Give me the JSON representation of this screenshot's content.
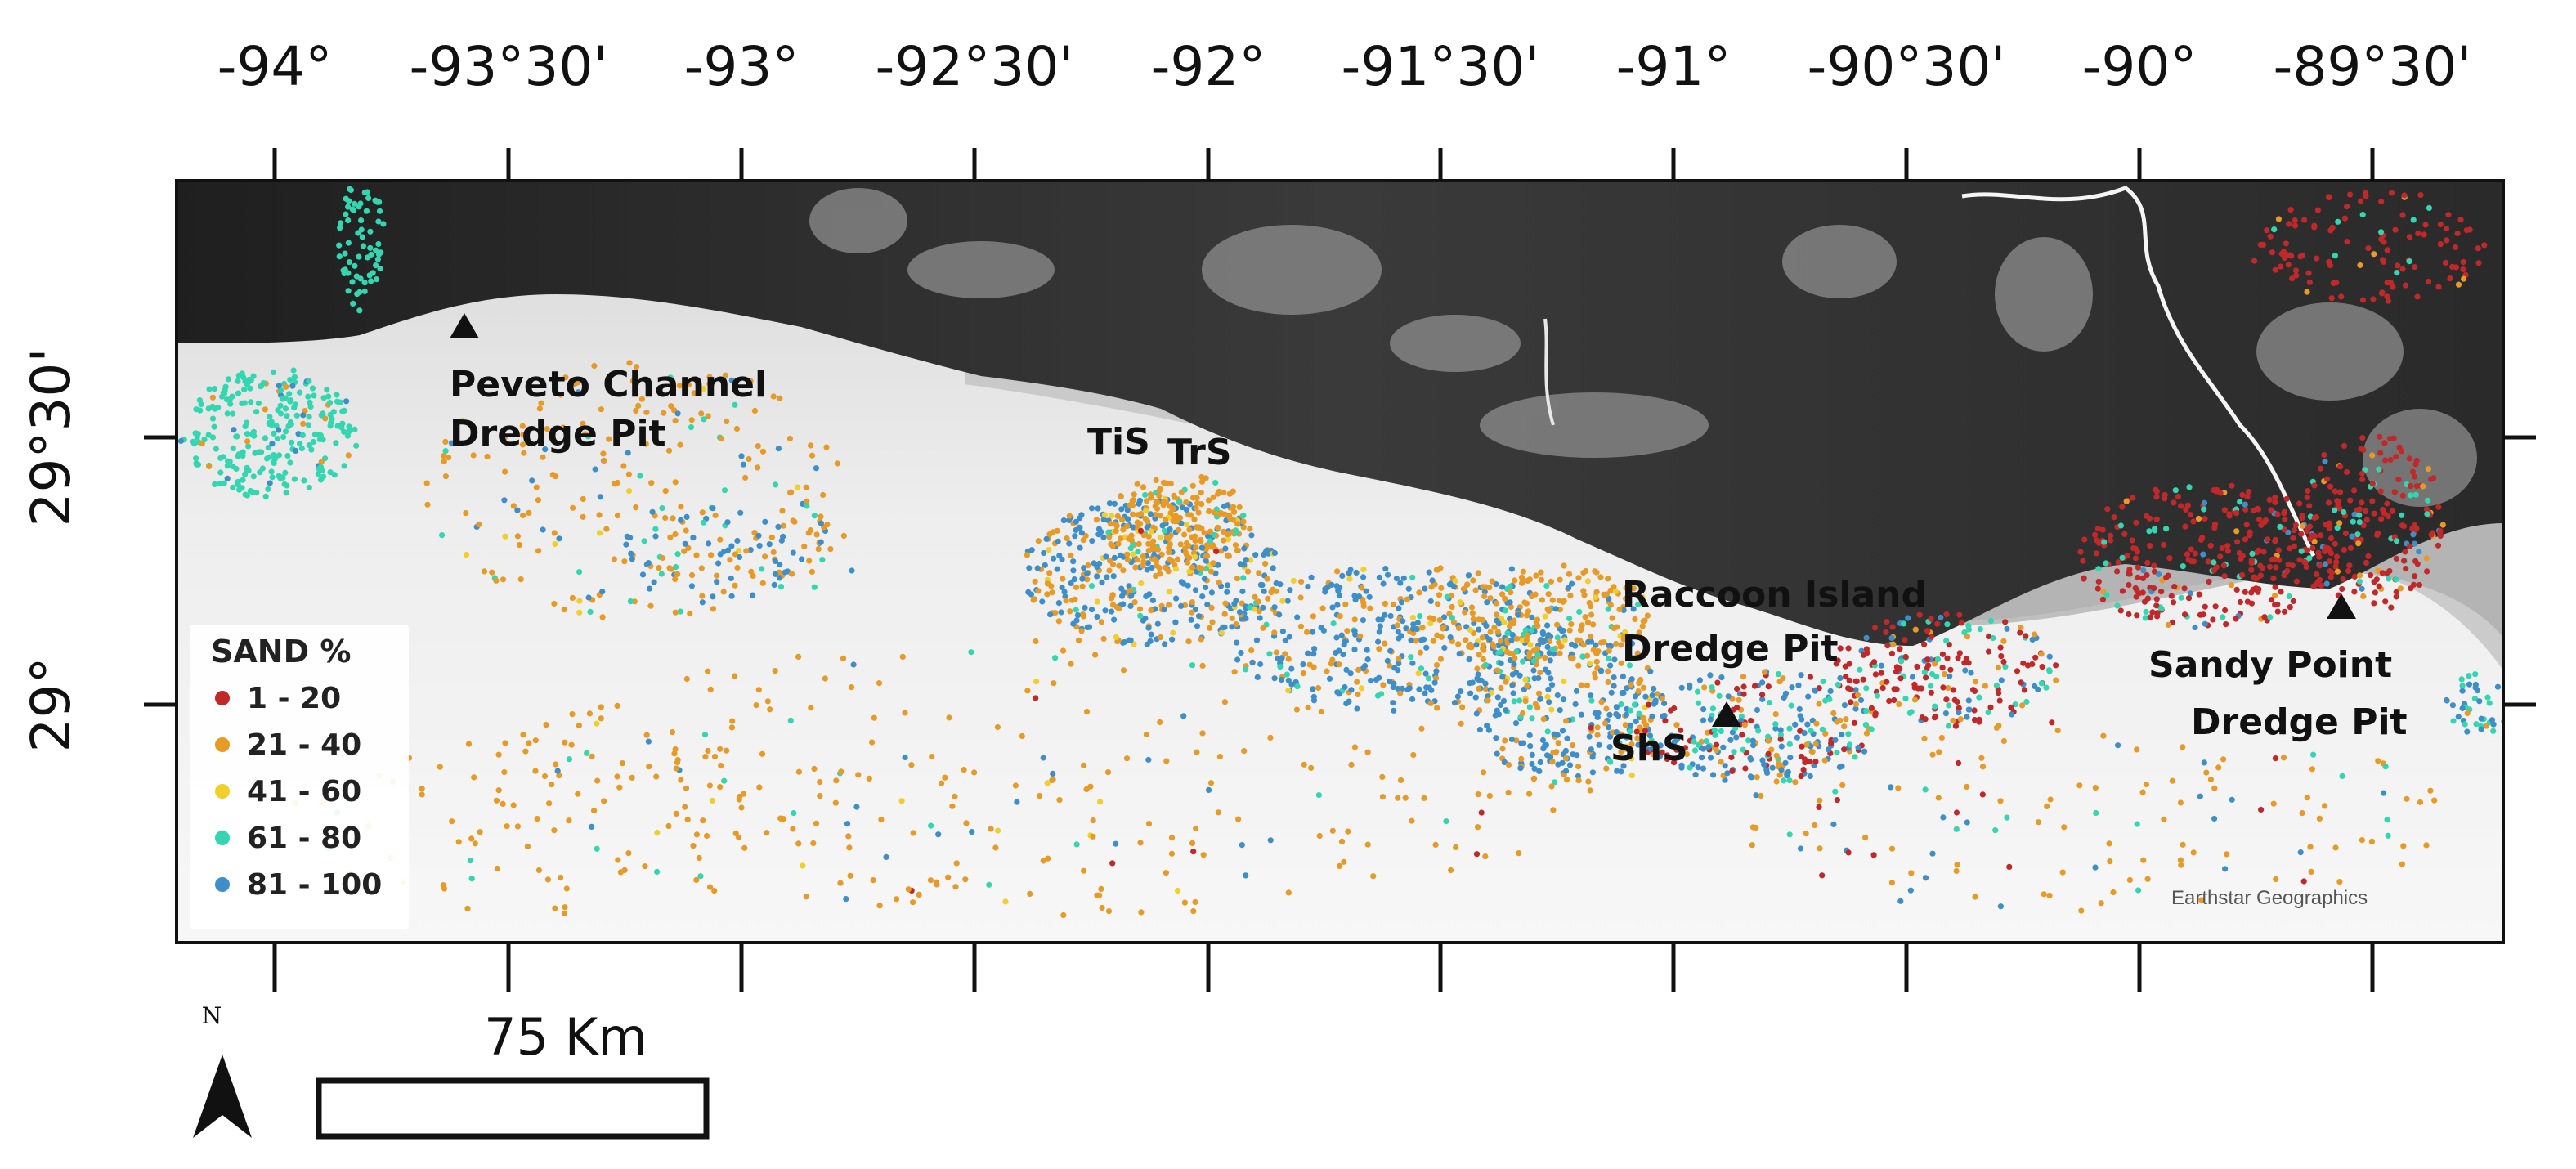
{
  "longitude_labels": [
    "-94°",
    "-93°30'",
    "-93°",
    "-92°30'",
    "-92°",
    "-91°30'",
    "-91°",
    "-90°30'",
    "-90°",
    "-89°30'"
  ],
  "latitude_labels": [
    "29°30'",
    "29°"
  ],
  "legend": {
    "title": "SAND %",
    "classes": [
      {
        "label": "1 - 20",
        "color": "#c0282a"
      },
      {
        "label": "21 - 40",
        "color": "#e79a26"
      },
      {
        "label": "41 - 60",
        "color": "#f1cf2a"
      },
      {
        "label": "61 - 80",
        "color": "#33d6b0"
      },
      {
        "label": "81 - 100",
        "color": "#3e8fc9"
      }
    ]
  },
  "sites": [
    {
      "line1": "Peveto Channel",
      "line2": "Dredge Pit"
    },
    {
      "line1": "Raccoon Island",
      "line2": "Dredge Pit"
    },
    {
      "line1": "Sandy Point",
      "line2": "Dredge Pit"
    }
  ],
  "shoals": [
    "TiS",
    "TrS",
    "ShS"
  ],
  "credit": "Earthstar Geographics",
  "scale_bar": {
    "label": "75 Km"
  },
  "north_arrow": {
    "label": "N"
  },
  "colors": {
    "land_dark": "#2c2c2c",
    "water_light": "#f2f2f2",
    "shelf_gray": "#c9c9c9"
  }
}
